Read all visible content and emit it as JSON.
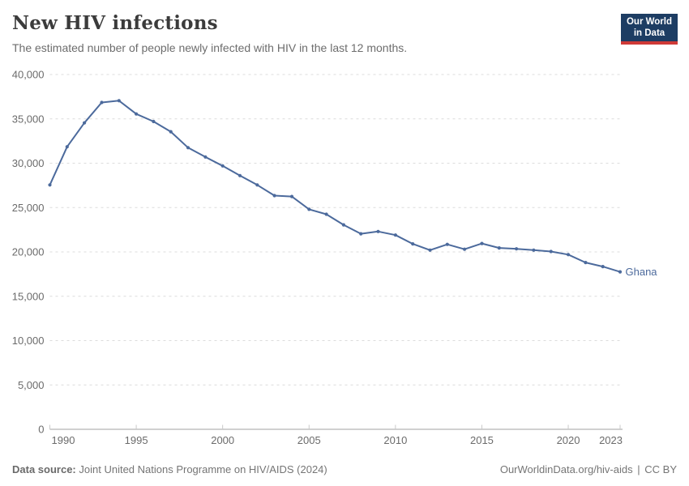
{
  "header": {
    "title": "New HIV infections",
    "subtitle": "The estimated number of people newly infected with HIV in the last 12 months.",
    "logo": {
      "line1": "Our World",
      "line2": "in Data"
    }
  },
  "chart_data": {
    "type": "line",
    "title": "New HIV infections",
    "xlabel": "",
    "ylabel": "",
    "x": [
      1990,
      1991,
      1992,
      1993,
      1994,
      1995,
      1996,
      1997,
      1998,
      1999,
      2000,
      2001,
      2002,
      2003,
      2004,
      2005,
      2006,
      2007,
      2008,
      2009,
      2010,
      2011,
      2012,
      2013,
      2014,
      2015,
      2016,
      2017,
      2018,
      2019,
      2020,
      2021,
      2022,
      2023
    ],
    "series": [
      {
        "name": "Ghana",
        "color": "#4C6A9C",
        "values": [
          27550,
          31850,
          34550,
          36850,
          37050,
          35550,
          34700,
          33550,
          31750,
          30700,
          29700,
          28600,
          27550,
          26350,
          26250,
          24800,
          24250,
          23050,
          22050,
          22300,
          21900,
          20900,
          20200,
          20850,
          20300,
          20950,
          20450,
          20350,
          20200,
          20050,
          19700,
          18800,
          18350,
          17750
        ]
      }
    ],
    "x_ticks": [
      1990,
      1995,
      2000,
      2005,
      2010,
      2015,
      2020,
      2023
    ],
    "y_ticks": [
      0,
      5000,
      10000,
      15000,
      20000,
      25000,
      30000,
      35000,
      40000
    ],
    "xlim": [
      1990,
      2023
    ],
    "ylim": [
      0,
      40000
    ],
    "grid": "horizontal-dashed",
    "legend_position": "end-of-line-label"
  },
  "footer": {
    "source_bold": "Data source:",
    "source_text": "Joint United Nations Programme on HIV/AIDS (2024)",
    "url": "OurWorldinData.org/hiv-aids",
    "divider": "|",
    "license": "CC BY"
  },
  "colors": {
    "line": "#4C6A9C",
    "grid": "#dcdcdc",
    "axis": "#a0a0a0",
    "tick": "#c9c9c9",
    "tick_label": "#6b6b6b",
    "title": "#3b3b3b",
    "subtitle": "#6d6d6d",
    "footer": "#757575",
    "logo_bg": "#1d3d63",
    "logo_stripe": "#cf3a37"
  }
}
